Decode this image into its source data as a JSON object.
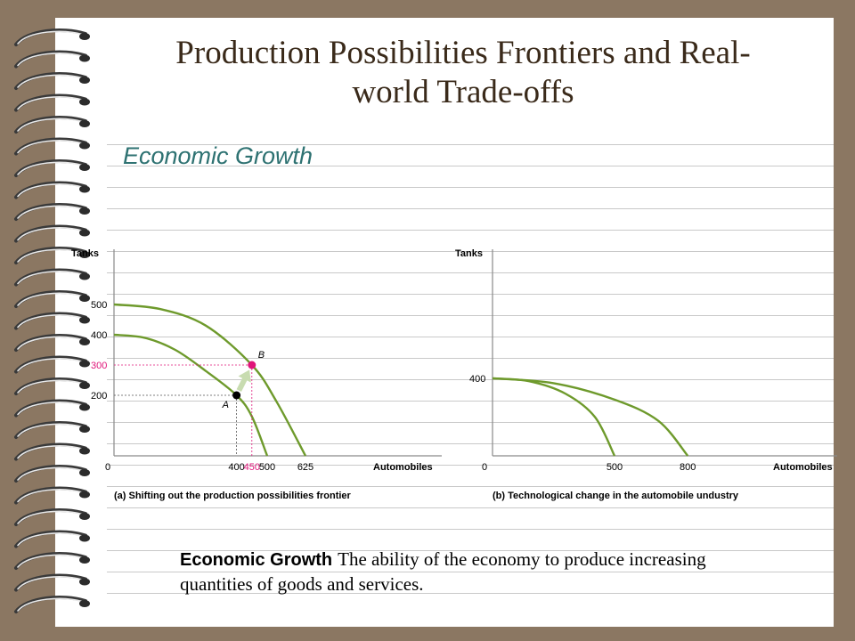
{
  "slide": {
    "title": "Production Possibilities Frontiers and Real-world Trade-offs",
    "subtitle": "Economic Growth"
  },
  "definition": {
    "term": "Economic Growth",
    "text": "The ability of the economy to produce increasing quantities of goods and services."
  },
  "colors": {
    "curve": "#6e9a2c",
    "highlight": "#e0157a",
    "arrow": "#c8dcb0",
    "axis": "#8a8a8a",
    "title": "#3a2a1a",
    "subtitle": "#2e7272",
    "binder": "#8b7762"
  },
  "chart_data": [
    {
      "type": "line",
      "caption": "(a) Shifting out the production possibilities frontier",
      "xlabel": "Automobiles",
      "ylabel": "Tanks",
      "origin_label": "0",
      "xlim": [
        0,
        625
      ],
      "ylim": [
        0,
        500
      ],
      "x_ticks": [
        "400",
        "450",
        "500",
        "625"
      ],
      "y_ticks": [
        "200",
        "300",
        "400",
        "500"
      ],
      "highlight_x_tick": "450",
      "highlight_y_tick": "300",
      "series": [
        {
          "points": [
            [
              0,
              400
            ],
            [
              100,
              390
            ],
            [
              200,
              350
            ],
            [
              300,
              280
            ],
            [
              400,
              200
            ],
            [
              450,
              130
            ],
            [
              500,
              0
            ]
          ]
        },
        {
          "points": [
            [
              0,
              500
            ],
            [
              150,
              485
            ],
            [
              300,
              430
            ],
            [
              450,
              300
            ],
            [
              530,
              180
            ],
            [
              625,
              0
            ]
          ]
        }
      ],
      "points": [
        {
          "label": "A",
          "x": 400,
          "y": 200
        },
        {
          "label": "B",
          "x": 450,
          "y": 300
        }
      ],
      "arrow": {
        "from": "A",
        "to": "B"
      }
    },
    {
      "type": "line",
      "caption": "(b) Technological change in the automobile undustry",
      "xlabel": "Automobiles",
      "ylabel": "Tanks",
      "origin_label": "0",
      "xlim": [
        0,
        1000
      ],
      "ylim": [
        0,
        625
      ],
      "x_ticks": [
        "500",
        "800"
      ],
      "y_ticks": [
        "400"
      ],
      "series": [
        {
          "points": [
            [
              0,
              400
            ],
            [
              150,
              385
            ],
            [
              300,
              320
            ],
            [
              420,
              200
            ],
            [
              500,
              0
            ]
          ]
        },
        {
          "points": [
            [
              0,
              400
            ],
            [
              250,
              375
            ],
            [
              500,
              290
            ],
            [
              680,
              180
            ],
            [
              800,
              0
            ]
          ]
        }
      ]
    }
  ]
}
